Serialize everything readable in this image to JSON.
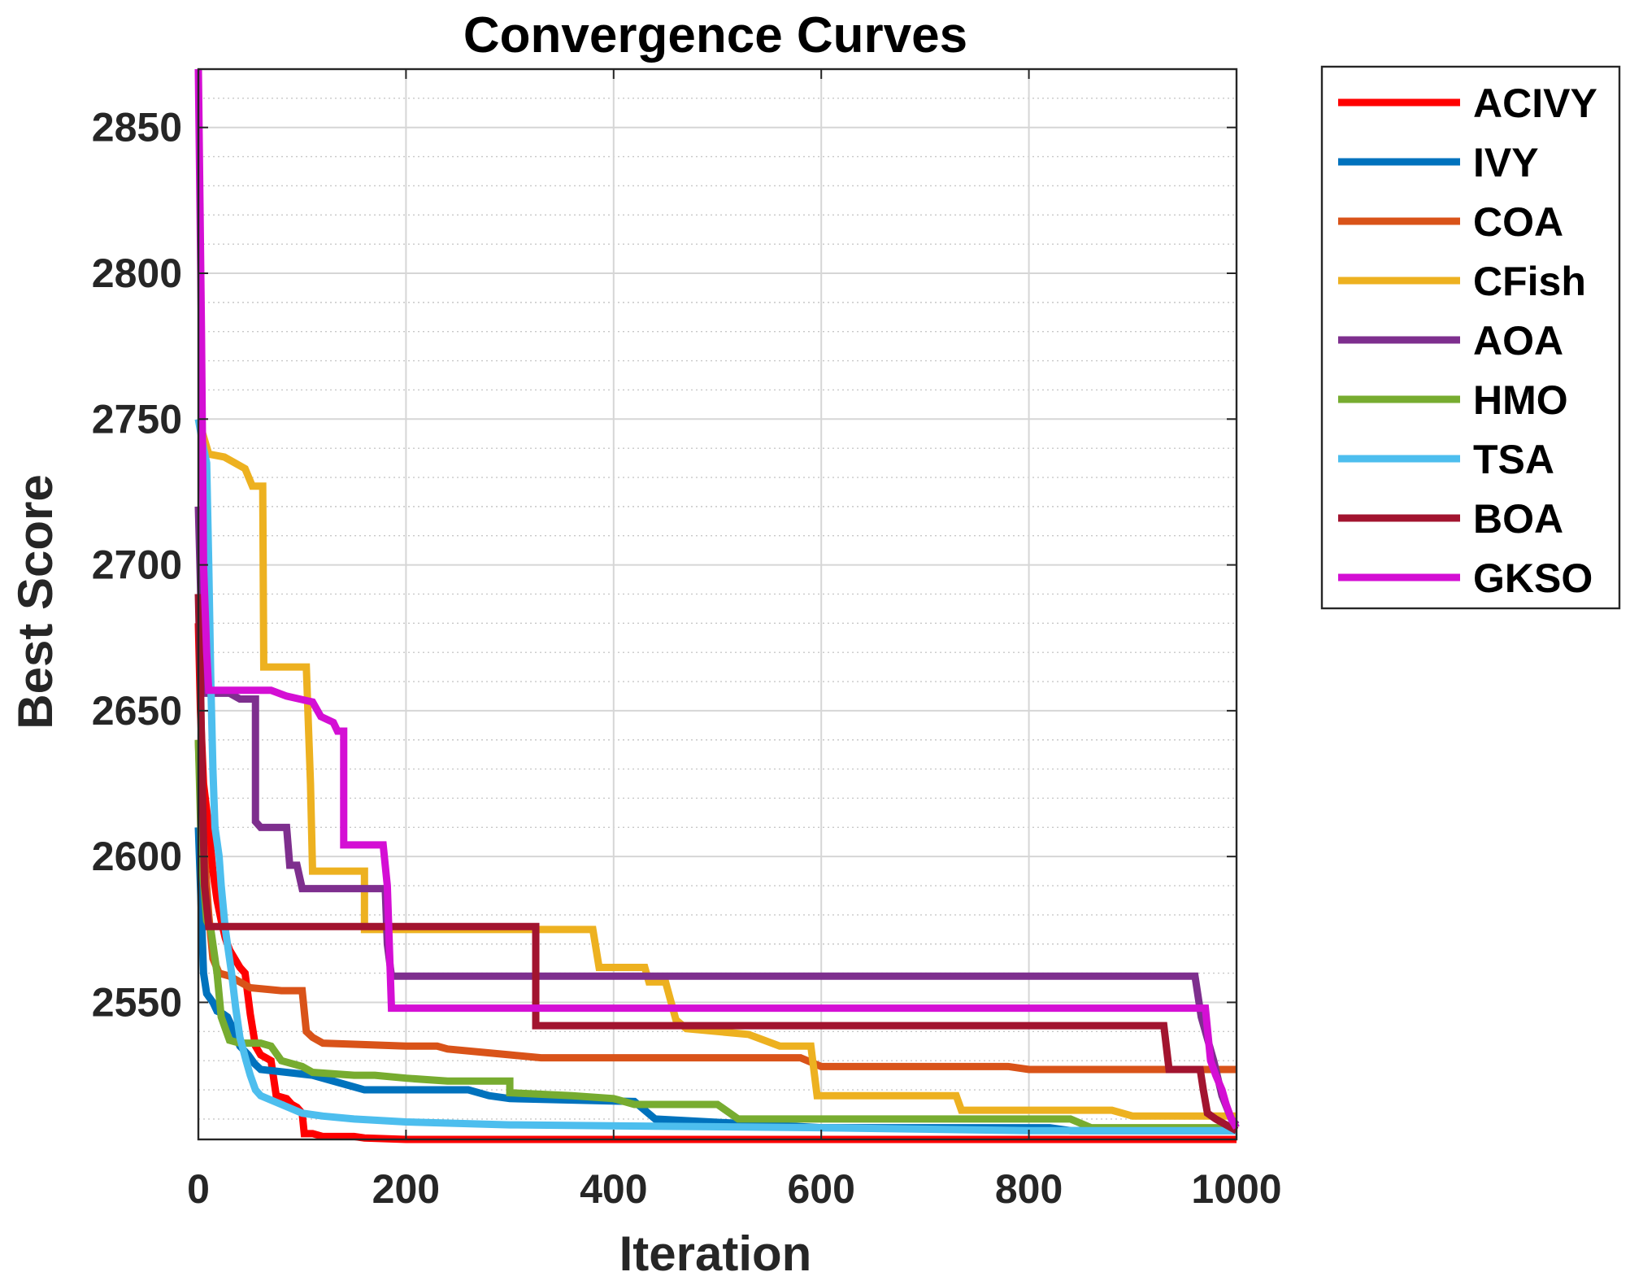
{
  "chart_data": {
    "type": "line",
    "title": "Convergence Curves",
    "xlabel": "Iteration",
    "ylabel": "Best Score",
    "xlim": [
      0,
      1000
    ],
    "ylim": [
      2503,
      2870
    ],
    "x_ticks": [
      0,
      200,
      400,
      600,
      800,
      1000
    ],
    "y_ticks": [
      2550,
      2600,
      2650,
      2700,
      2750,
      2800,
      2850
    ],
    "x_tick_labels": [
      "0",
      "200",
      "400",
      "600",
      "800",
      "1000"
    ],
    "y_tick_labels": [
      "2550",
      "2600",
      "2650",
      "2700",
      "2750",
      "2800",
      "2850"
    ],
    "grid": true,
    "legend_position": "outside-top-right",
    "series": [
      {
        "name": "ACIVY",
        "color": "#ff0000",
        "points": [
          [
            0,
            2680
          ],
          [
            2,
            2650
          ],
          [
            5,
            2625
          ],
          [
            10,
            2610
          ],
          [
            14,
            2595
          ],
          [
            18,
            2585
          ],
          [
            22,
            2578
          ],
          [
            26,
            2572
          ],
          [
            30,
            2568
          ],
          [
            35,
            2565
          ],
          [
            40,
            2562
          ],
          [
            45,
            2560
          ],
          [
            50,
            2546
          ],
          [
            55,
            2535
          ],
          [
            60,
            2532
          ],
          [
            65,
            2531
          ],
          [
            70,
            2530
          ],
          [
            75,
            2518
          ],
          [
            85,
            2517
          ],
          [
            90,
            2515
          ],
          [
            95,
            2514
          ],
          [
            100,
            2512
          ],
          [
            102,
            2505
          ],
          [
            110,
            2505
          ],
          [
            120,
            2504
          ],
          [
            140,
            2504
          ],
          [
            150,
            2504
          ],
          [
            160,
            2503.5
          ],
          [
            200,
            2503
          ],
          [
            1000,
            2503
          ]
        ]
      },
      {
        "name": "IVY",
        "color": "#0072bd",
        "points": [
          [
            0,
            2610
          ],
          [
            3,
            2580
          ],
          [
            5,
            2560
          ],
          [
            8,
            2553
          ],
          [
            14,
            2550
          ],
          [
            18,
            2547
          ],
          [
            24,
            2546
          ],
          [
            28,
            2545
          ],
          [
            32,
            2542
          ],
          [
            40,
            2535
          ],
          [
            48,
            2532
          ],
          [
            54,
            2529
          ],
          [
            60,
            2527
          ],
          [
            110,
            2525
          ],
          [
            140,
            2522
          ],
          [
            160,
            2520
          ],
          [
            200,
            2520
          ],
          [
            260,
            2520
          ],
          [
            280,
            2518
          ],
          [
            300,
            2517
          ],
          [
            420,
            2516
          ],
          [
            440,
            2510
          ],
          [
            600,
            2507
          ],
          [
            820,
            2507
          ],
          [
            840,
            2506
          ],
          [
            1000,
            2506
          ]
        ]
      },
      {
        "name": "COA",
        "color": "#d95319",
        "points": [
          [
            0,
            2640
          ],
          [
            2,
            2620
          ],
          [
            6,
            2600
          ],
          [
            10,
            2580
          ],
          [
            14,
            2565
          ],
          [
            20,
            2560
          ],
          [
            30,
            2559
          ],
          [
            50,
            2555
          ],
          [
            80,
            2554
          ],
          [
            100,
            2554
          ],
          [
            104,
            2540
          ],
          [
            110,
            2538
          ],
          [
            120,
            2536
          ],
          [
            200,
            2535
          ],
          [
            230,
            2535
          ],
          [
            240,
            2534
          ],
          [
            300,
            2532
          ],
          [
            330,
            2531
          ],
          [
            580,
            2531
          ],
          [
            600,
            2528
          ],
          [
            780,
            2528
          ],
          [
            800,
            2527
          ],
          [
            1000,
            2527
          ]
        ]
      },
      {
        "name": "CFish",
        "color": "#edb120",
        "points": [
          [
            0,
            2750
          ],
          [
            10,
            2738
          ],
          [
            25,
            2737
          ],
          [
            35,
            2735
          ],
          [
            45,
            2733
          ],
          [
            52,
            2727
          ],
          [
            62,
            2727
          ],
          [
            63,
            2665
          ],
          [
            104,
            2665
          ],
          [
            108,
            2625
          ],
          [
            110,
            2595
          ],
          [
            160,
            2595
          ],
          [
            160,
            2575
          ],
          [
            380,
            2575
          ],
          [
            386,
            2562
          ],
          [
            430,
            2562
          ],
          [
            434,
            2557
          ],
          [
            450,
            2557
          ],
          [
            460,
            2544
          ],
          [
            470,
            2541
          ],
          [
            530,
            2539
          ],
          [
            560,
            2535
          ],
          [
            590,
            2535
          ],
          [
            596,
            2518
          ],
          [
            730,
            2518
          ],
          [
            735,
            2513
          ],
          [
            880,
            2513
          ],
          [
            900,
            2511
          ],
          [
            1000,
            2511
          ]
        ]
      },
      {
        "name": "AOA",
        "color": "#7e2f8e",
        "points": [
          [
            0,
            2720
          ],
          [
            3,
            2680
          ],
          [
            5,
            2665
          ],
          [
            8,
            2656
          ],
          [
            30,
            2656
          ],
          [
            40,
            2654
          ],
          [
            55,
            2654
          ],
          [
            55,
            2612
          ],
          [
            60,
            2610
          ],
          [
            70,
            2610
          ],
          [
            85,
            2610
          ],
          [
            88,
            2597
          ],
          [
            95,
            2597
          ],
          [
            100,
            2589
          ],
          [
            180,
            2589
          ],
          [
            182,
            2570
          ],
          [
            186,
            2559
          ],
          [
            960,
            2559
          ],
          [
            966,
            2545
          ],
          [
            970,
            2540
          ],
          [
            978,
            2530
          ],
          [
            986,
            2518
          ],
          [
            995,
            2510
          ],
          [
            1000,
            2508
          ]
        ]
      },
      {
        "name": "HMO",
        "color": "#77ac30",
        "points": [
          [
            0,
            2640
          ],
          [
            3,
            2600
          ],
          [
            8,
            2578
          ],
          [
            12,
            2575
          ],
          [
            18,
            2560
          ],
          [
            22,
            2545
          ],
          [
            30,
            2537
          ],
          [
            40,
            2536
          ],
          [
            60,
            2536
          ],
          [
            70,
            2535
          ],
          [
            80,
            2530
          ],
          [
            100,
            2528
          ],
          [
            110,
            2526
          ],
          [
            150,
            2525
          ],
          [
            170,
            2525
          ],
          [
            200,
            2524
          ],
          [
            240,
            2523
          ],
          [
            300,
            2523
          ],
          [
            300,
            2519
          ],
          [
            360,
            2518
          ],
          [
            400,
            2517
          ],
          [
            420,
            2515
          ],
          [
            500,
            2515
          ],
          [
            520,
            2510
          ],
          [
            560,
            2510
          ],
          [
            600,
            2510
          ],
          [
            840,
            2510
          ],
          [
            860,
            2507
          ],
          [
            1000,
            2507
          ]
        ]
      },
      {
        "name": "TSA",
        "color": "#4dbeee",
        "points": [
          [
            0,
            2750
          ],
          [
            5,
            2740
          ],
          [
            8,
            2735
          ],
          [
            10,
            2700
          ],
          [
            12,
            2660
          ],
          [
            14,
            2630
          ],
          [
            16,
            2610
          ],
          [
            18,
            2605
          ],
          [
            20,
            2600
          ],
          [
            22,
            2590
          ],
          [
            26,
            2575
          ],
          [
            32,
            2560
          ],
          [
            36,
            2548
          ],
          [
            40,
            2538
          ],
          [
            46,
            2530
          ],
          [
            50,
            2525
          ],
          [
            55,
            2520
          ],
          [
            60,
            2518
          ],
          [
            80,
            2515
          ],
          [
            100,
            2512
          ],
          [
            120,
            2511
          ],
          [
            150,
            2510
          ],
          [
            200,
            2509
          ],
          [
            300,
            2508
          ],
          [
            600,
            2507
          ],
          [
            800,
            2506
          ],
          [
            1000,
            2506
          ]
        ]
      },
      {
        "name": "BOA",
        "color": "#a2142f",
        "points": [
          [
            0,
            2690
          ],
          [
            2,
            2660
          ],
          [
            4,
            2620
          ],
          [
            6,
            2590
          ],
          [
            10,
            2576
          ],
          [
            20,
            2576
          ],
          [
            300,
            2576
          ],
          [
            325,
            2576
          ],
          [
            325,
            2542
          ],
          [
            400,
            2542
          ],
          [
            930,
            2542
          ],
          [
            935,
            2527
          ],
          [
            965,
            2527
          ],
          [
            968,
            2520
          ],
          [
            972,
            2512
          ],
          [
            980,
            2510
          ],
          [
            990,
            2508
          ],
          [
            1000,
            2506
          ]
        ]
      },
      {
        "name": "GKSO",
        "color": "#d40fd4",
        "points": [
          [
            0,
            2870
          ],
          [
            3,
            2780
          ],
          [
            5,
            2700
          ],
          [
            8,
            2670
          ],
          [
            10,
            2657
          ],
          [
            70,
            2657
          ],
          [
            85,
            2655
          ],
          [
            110,
            2653
          ],
          [
            118,
            2648
          ],
          [
            130,
            2646
          ],
          [
            134,
            2643
          ],
          [
            140,
            2643
          ],
          [
            140,
            2604
          ],
          [
            178,
            2604
          ],
          [
            182,
            2590
          ],
          [
            186,
            2548
          ],
          [
            970,
            2548
          ],
          [
            975,
            2530
          ],
          [
            980,
            2525
          ],
          [
            986,
            2520
          ],
          [
            990,
            2515
          ],
          [
            995,
            2510
          ],
          [
            1000,
            2507
          ]
        ]
      }
    ]
  }
}
